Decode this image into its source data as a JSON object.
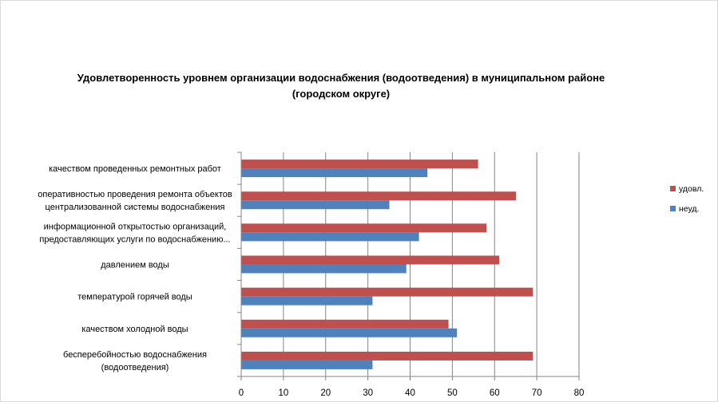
{
  "chart_data": {
    "type": "bar",
    "orientation": "horizontal",
    "title": [
      "Удовлетворенность уровнем организации водоснабжения (водоотведения) в муниципальном районе",
      "(городском округе)"
    ],
    "categories": [
      [
        "качеством  проведенных  ремонтных работ"
      ],
      [
        "оперативностью  проведения  ремонта объектов",
        "централизованной системы водоснабжения"
      ],
      [
        "информационной открытостью организаций,",
        "предоставляющих услуги по водоснабжению..."
      ],
      [
        "давлением  воды"
      ],
      [
        "температурой  горячей воды"
      ],
      [
        "качеством  холодной воды"
      ],
      [
        "бесперебойностью  водоснабжения",
        "(водоотведения)"
      ]
    ],
    "series": [
      {
        "name": "удовл.",
        "color": "#c0504d",
        "values": [
          56,
          65,
          58,
          61,
          69,
          49,
          69
        ]
      },
      {
        "name": "неуд.",
        "color": "#4f81bd",
        "values": [
          44,
          35,
          42,
          39,
          31,
          51,
          31
        ]
      }
    ],
    "xlim": [
      0,
      80
    ],
    "ticks": [
      0,
      10,
      20,
      30,
      40,
      50,
      60,
      70,
      80
    ],
    "grid": true,
    "legend": "right"
  }
}
